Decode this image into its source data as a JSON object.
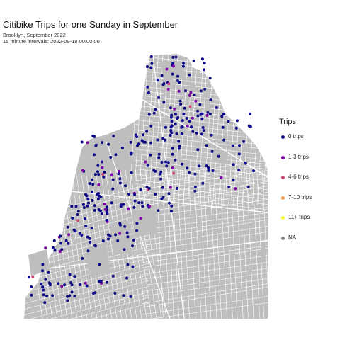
{
  "title": "Citibike Trips for one Sunday in September",
  "subtitle_line1": "Brooklyn, September 2022",
  "subtitle_line2": "15 minute intervals: 2022-09-18 00:00:00",
  "legend": {
    "title": "Trips",
    "items": [
      {
        "label": "0 trips",
        "color": "#0d0887"
      },
      {
        "label": "1-3 trips",
        "color": "#7e03a8"
      },
      {
        "label": "4-6 trips",
        "color": "#cc4778"
      },
      {
        "label": "7-10 trips",
        "color": "#f89540"
      },
      {
        "label": "11+ trips",
        "color": "#f0f921"
      },
      {
        "label": "NA",
        "color": "#7f7f7f"
      }
    ]
  },
  "colors": {
    "land": "#bebebe",
    "streets": "#ffffff",
    "background": "#ffffff"
  }
}
